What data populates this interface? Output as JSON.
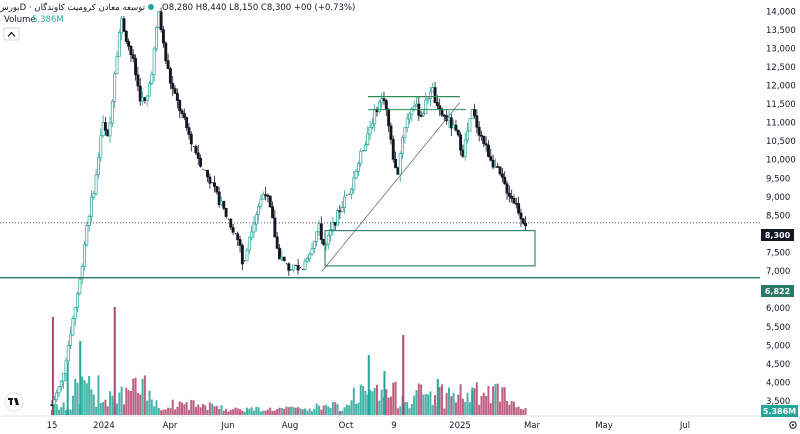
{
  "legend": {
    "symbol": "ﺑﻮرس · 1D · ﺗﻮﺳﻌﻪ ﻣﻌﺎدن ﮐﺮوﻣﯿﺖ ﮐﺎوﻧﺪﮔﺎن",
    "ohlc_text": "O8,280 H8,440 L8,150 C8,300 +00 (+0.73%)",
    "volume_label": "Volume",
    "volume_value": "5.386M",
    "collapse_icon": "chevron-up-icon",
    "status_dot_color": "#26a69a"
  },
  "price_tags": {
    "last_price": "8,300",
    "support_price": "6,822",
    "volume_tag": "5.386M"
  },
  "chart_data": {
    "type": "candlestick",
    "y_axis": {
      "ticks": [
        14000,
        13500,
        13000,
        12500,
        12000,
        11500,
        11000,
        10500,
        10000,
        9500,
        9000,
        8500,
        8000,
        7500,
        7000,
        6500,
        6000,
        5500,
        5000,
        4500,
        4000,
        3500
      ],
      "tick_labels": [
        "14,000",
        "13,500",
        "13,000",
        "12,500",
        "12,000",
        "11,500",
        "11,000",
        "10,500",
        "10,000",
        "9,500",
        "9,000",
        "8,500",
        "8,000",
        "7,500",
        "7,000",
        "6,500",
        "6,000",
        "5,500",
        "5,000",
        "4,500",
        "4,000",
        "3,500"
      ],
      "range": [
        3150,
        14250
      ]
    },
    "x_axis": {
      "tick_labels": [
        "15",
        "2024",
        "Apr",
        "Jun",
        "Aug",
        "Oct",
        "9",
        "2025",
        "Mar",
        "May",
        "Jul"
      ]
    },
    "price_path": [
      [
        0.0,
        3400
      ],
      [
        0.03,
        4000
      ],
      [
        0.06,
        5400
      ],
      [
        0.09,
        6800
      ],
      [
        0.11,
        8200
      ],
      [
        0.14,
        9500
      ],
      [
        0.16,
        11000
      ],
      [
        0.18,
        10500
      ],
      [
        0.2,
        12400
      ],
      [
        0.22,
        13800
      ],
      [
        0.24,
        13200
      ],
      [
        0.26,
        12600
      ],
      [
        0.28,
        11700
      ],
      [
        0.3,
        11500
      ],
      [
        0.32,
        12500
      ],
      [
        0.34,
        14000
      ],
      [
        0.36,
        12800
      ],
      [
        0.38,
        12000
      ],
      [
        0.41,
        11300
      ],
      [
        0.44,
        10600
      ],
      [
        0.47,
        10000
      ],
      [
        0.51,
        9300
      ],
      [
        0.55,
        8600
      ],
      [
        0.58,
        8100
      ],
      [
        0.6,
        7700
      ],
      [
        0.61,
        7000
      ],
      [
        0.63,
        8000
      ],
      [
        0.66,
        8800
      ],
      [
        0.68,
        9200
      ],
      [
        0.7,
        8500
      ],
      [
        0.72,
        7500
      ],
      [
        0.75,
        7100
      ],
      [
        0.79,
        7000
      ],
      [
        0.82,
        7500
      ],
      [
        0.85,
        8200
      ],
      [
        0.87,
        7600
      ],
      [
        0.89,
        8100
      ],
      [
        0.92,
        8700
      ],
      [
        0.95,
        9200
      ],
      [
        0.98,
        10000
      ],
      [
        1.01,
        10800
      ],
      [
        1.04,
        11500
      ],
      [
        1.06,
        11700
      ],
      [
        1.08,
        10500
      ],
      [
        1.1,
        9500
      ],
      [
        1.12,
        10800
      ],
      [
        1.15,
        11500
      ],
      [
        1.18,
        11200
      ],
      [
        1.21,
        12000
      ],
      [
        1.23,
        11300
      ],
      [
        1.26,
        11100
      ],
      [
        1.29,
        10700
      ],
      [
        1.31,
        10200
      ],
      [
        1.34,
        11300
      ],
      [
        1.36,
        10800
      ],
      [
        1.39,
        10200
      ],
      [
        1.42,
        9700
      ],
      [
        1.45,
        9200
      ],
      [
        1.48,
        8800
      ],
      [
        1.5,
        8400
      ],
      [
        1.51,
        8300
      ]
    ],
    "series": [
      {
        "name": "Volume",
        "kind": "histogram",
        "overlay_values": [
          4.9,
          2.6,
          3.7,
          5.4,
          3.0,
          2.2,
          4.0,
          1.8,
          1.2
        ]
      }
    ],
    "annotations": {
      "horizontal_lines": [
        11700,
        11350
      ],
      "support_line": 6822,
      "last_price_line": 8300,
      "trendline": {
        "from": [
          0.86,
          6990
        ],
        "to": [
          1.3,
          11000
        ]
      },
      "zone": {
        "y_top": 8090,
        "y_bottom": 7140
      }
    },
    "colors": {
      "up": "#26a69a",
      "down": "#131722",
      "volume_up": "#26a69a",
      "volume_down": "#b2456c",
      "annotation": "#2a7a6a"
    },
    "grid": false,
    "legend_position": "top-left"
  }
}
